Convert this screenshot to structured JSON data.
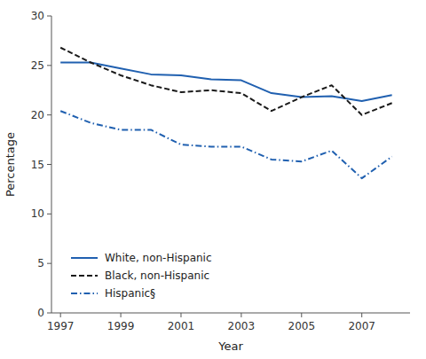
{
  "chart_data": {
    "type": "line",
    "x": [
      1997,
      1998,
      1999,
      2000,
      2001,
      2002,
      2003,
      2004,
      2005,
      2006,
      2007,
      2008
    ],
    "series": [
      {
        "name": "White, non-Hispanic",
        "color": "#2060b0",
        "line_style": "solid",
        "values": [
          25.3,
          25.3,
          24.7,
          24.1,
          24.0,
          23.6,
          23.5,
          22.2,
          21.8,
          21.9,
          21.4,
          22.0
        ]
      },
      {
        "name": "Black, non-Hispanic",
        "color": "#1a1a1a",
        "line_style": "dashed",
        "values": [
          26.8,
          25.3,
          24.0,
          23.0,
          22.3,
          22.5,
          22.2,
          20.4,
          21.8,
          23.0,
          20.0,
          21.2
        ]
      },
      {
        "name": "Hispanic§",
        "color": "#2060b0",
        "line_style": "dashdot",
        "values": [
          20.4,
          19.2,
          18.5,
          18.5,
          17.0,
          16.8,
          16.8,
          15.5,
          15.3,
          16.4,
          13.6,
          15.8
        ]
      }
    ],
    "xlim": [
      1996.7,
      2008.6
    ],
    "xticks": [
      1997,
      1999,
      2001,
      2003,
      2005,
      2007
    ],
    "ylim": [
      0,
      30
    ],
    "yticks": [
      0,
      5,
      10,
      15,
      20,
      25,
      30
    ],
    "x_label": "Year",
    "y_label": "Percentage",
    "legend": "lower left"
  }
}
